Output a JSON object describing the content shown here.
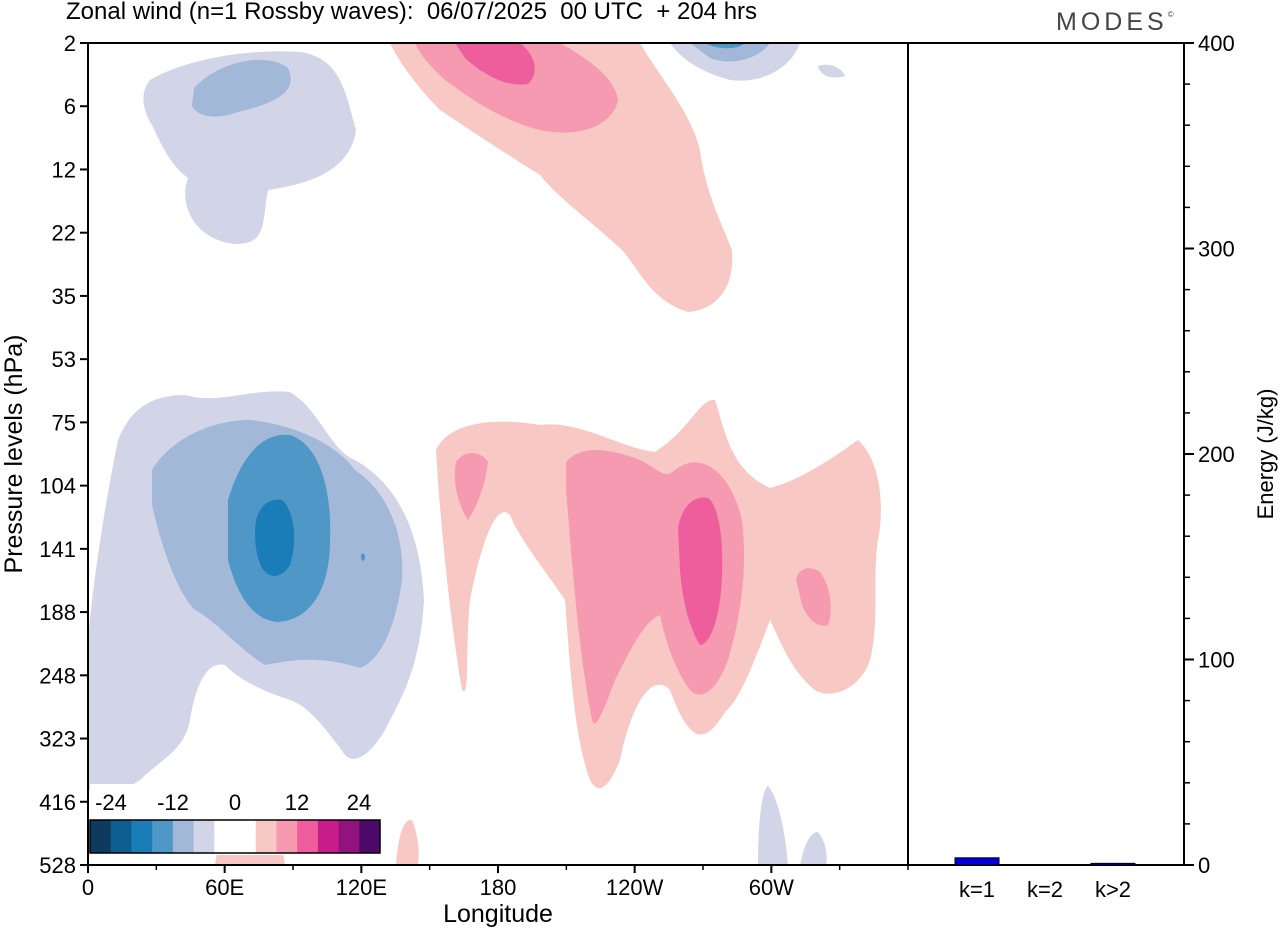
{
  "header": {
    "title": "Zonal wind (n=1 Rossby waves):  06/07/2025  00 UTC  + 204 hrs",
    "logo": "MODES",
    "logo_mark": "©"
  },
  "chart_data": [
    {
      "type": "heatmap",
      "title": "Zonal wind (n=1 Rossby waves):  06/07/2025  00 UTC  + 204 hrs",
      "xlabel": "Longitude",
      "ylabel": "Pressure levels (hPa)",
      "x_ticks": [
        "0",
        "60E",
        "120E",
        "180",
        "120W",
        "60W"
      ],
      "x_tick_degrees": [
        0,
        60,
        120,
        180,
        240,
        300
      ],
      "xlim": [
        0,
        360
      ],
      "y_ticks": [
        "2",
        "6",
        "12",
        "22",
        "35",
        "53",
        "75",
        "104",
        "141",
        "188",
        "248",
        "323",
        "416",
        "528"
      ],
      "colorbar": {
        "labels": [
          "-24",
          "-12",
          "0",
          "12",
          "24"
        ],
        "colors": [
          "#0d3b5e",
          "#0f5e91",
          "#1a7db8",
          "#4f97c7",
          "#a2b8d8",
          "#d2d4e8",
          "#ffffff",
          "#ffffff",
          "#f8c9c4",
          "#f59ab0",
          "#ee5e9c",
          "#c81c8a",
          "#92137d",
          "#4e0a6b"
        ]
      },
      "features": [
        {
          "sign": "negative",
          "min": -18,
          "lon": 80,
          "level_hPa": 141,
          "label": "easterly core, lower stratosphere"
        },
        {
          "sign": "negative",
          "min": -6,
          "lon": 55,
          "level_hPa": 6,
          "label": "easterly, upper levels"
        },
        {
          "sign": "negative",
          "min": -12,
          "lon": 260,
          "level_hPa": 2,
          "label": "easterly, top levels"
        },
        {
          "sign": "positive",
          "max": 12,
          "lon": 250,
          "level_hPa": 141,
          "label": "westerly core"
        },
        {
          "sign": "positive",
          "max": 12,
          "lon": 180,
          "level_hPa": 2,
          "label": "westerly, top levels"
        }
      ]
    },
    {
      "type": "bar",
      "categories": [
        "k=1",
        "k=2",
        "k>2"
      ],
      "values": [
        3.5,
        0.2,
        0.8
      ],
      "ylabel": "Energy (J/kg)",
      "y_ticks": [
        "0",
        "100",
        "200",
        "300",
        "400"
      ],
      "ylim": [
        0,
        400
      ],
      "colors": [
        "#0000dd",
        "#0000dd",
        "#0000dd"
      ]
    }
  ]
}
